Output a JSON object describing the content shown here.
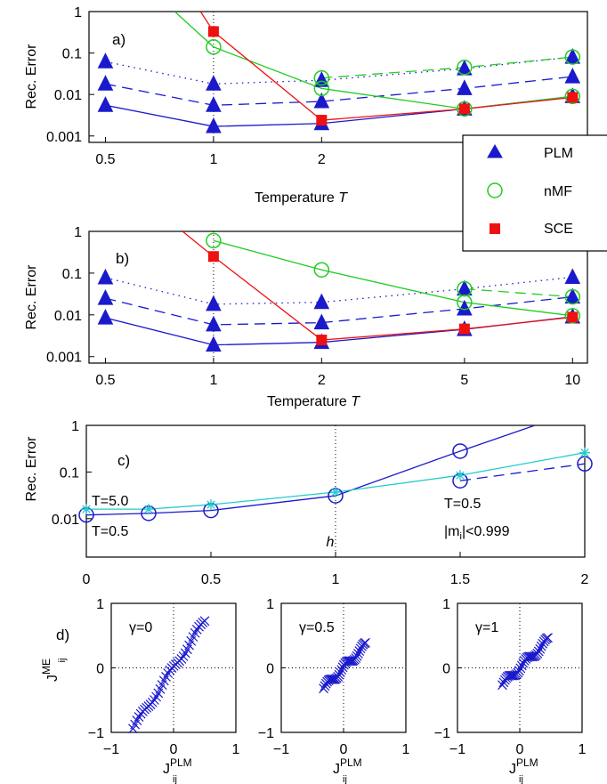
{
  "legend": {
    "entries": [
      {
        "label": "PLM",
        "marker": "triangle",
        "color": "#1a1acc"
      },
      {
        "label": "nMF",
        "marker": "open-circle",
        "color": "#22cc22"
      },
      {
        "label": "SCE",
        "marker": "square",
        "color": "#ee1111"
      }
    ],
    "placement": "right, spanning panels a and b"
  },
  "chart_data": [
    {
      "type": "line",
      "panel_label": "a)",
      "ylabel": "Rec. Error",
      "xlabel_plain": "Temperature ",
      "xlabel_italic": "T",
      "x_scale": "log",
      "y_scale": "log",
      "xlim": [
        0.45,
        11
      ],
      "ylim": [
        0.0007,
        1
      ],
      "x_ticks": [
        0.5,
        1,
        2
      ],
      "x_tick_labels": [
        "0.5",
        "1",
        "2"
      ],
      "y_ticks": [
        0.001,
        0.01,
        0.1,
        1
      ],
      "y_tick_labels": [
        "0.001",
        "0.01",
        "0.1",
        "1"
      ],
      "x": [
        0.5,
        1,
        2,
        5,
        10
      ],
      "series": [
        {
          "method": "PLM",
          "style": "solid",
          "values": [
            0.0055,
            0.0017,
            0.002,
            0.0045,
            0.009
          ]
        },
        {
          "method": "PLM",
          "style": "dashed",
          "values": [
            0.018,
            0.0055,
            0.0068,
            0.014,
            0.027
          ]
        },
        {
          "method": "PLM",
          "style": "dotted",
          "values": [
            0.062,
            0.018,
            0.022,
            0.042,
            0.08
          ]
        },
        {
          "method": "nMF",
          "style": "solid",
          "x": [
            0.78,
            1,
            2,
            5,
            10
          ],
          "values": [
            1,
            0.14,
            0.014,
            0.0045,
            0.009
          ],
          "markers": [
            false,
            true,
            true,
            true,
            true
          ]
        },
        {
          "method": "nMF",
          "style": "dashed",
          "x": [
            2,
            5,
            10
          ],
          "values": [
            0.025,
            0.045,
            0.08
          ],
          "markers": [
            true,
            true,
            true
          ]
        },
        {
          "method": "SCE",
          "style": "solid",
          "x": [
            0.92,
            1,
            2,
            5,
            10
          ],
          "values": [
            1,
            0.33,
            0.0024,
            0.0045,
            0.0085
          ],
          "markers": [
            false,
            true,
            true,
            true,
            true
          ]
        }
      ]
    },
    {
      "type": "line",
      "panel_label": "b)",
      "ylabel": "Rec. Error",
      "xlabel_plain": "Temperature ",
      "xlabel_italic": "T",
      "x_scale": "log",
      "y_scale": "log",
      "xlim": [
        0.45,
        11
      ],
      "ylim": [
        0.0007,
        1
      ],
      "x_ticks": [
        0.5,
        1,
        2,
        5,
        10
      ],
      "x_tick_labels": [
        "0.5",
        "1",
        "2",
        "5",
        "10"
      ],
      "y_ticks": [
        0.001,
        0.01,
        0.1,
        1
      ],
      "y_tick_labels": [
        "0.001",
        "0.01",
        "0.1",
        "1"
      ],
      "x": [
        0.5,
        1,
        2,
        5,
        10
      ],
      "series": [
        {
          "method": "PLM",
          "style": "solid",
          "values": [
            0.0085,
            0.0019,
            0.0022,
            0.0045,
            0.009
          ]
        },
        {
          "method": "PLM",
          "style": "dashed",
          "values": [
            0.025,
            0.0058,
            0.0065,
            0.014,
            0.027
          ]
        },
        {
          "method": "PLM",
          "style": "dotted",
          "values": [
            0.078,
            0.018,
            0.02,
            0.042,
            0.08
          ]
        },
        {
          "method": "nMF",
          "style": "solid",
          "x": [
            1,
            2,
            5,
            10
          ],
          "values": [
            0.6,
            0.12,
            0.02,
            0.0095
          ],
          "markers": [
            true,
            true,
            true,
            true
          ]
        },
        {
          "method": "nMF",
          "style": "dashed",
          "x": [
            5,
            10
          ],
          "values": [
            0.042,
            0.027
          ],
          "markers": [
            true,
            true
          ]
        },
        {
          "method": "SCE",
          "style": "solid",
          "x": [
            0.82,
            1,
            2,
            5,
            10
          ],
          "values": [
            1,
            0.25,
            0.0025,
            0.0046,
            0.0088
          ],
          "markers": [
            false,
            true,
            true,
            true,
            true
          ]
        }
      ]
    },
    {
      "type": "line",
      "panel_label": "c)",
      "ylabel": "Rec. Error",
      "xlabel_italic": "h",
      "x_scale": "linear",
      "y_scale": "log",
      "xlim": [
        0,
        2
      ],
      "ylim": [
        0.0015,
        1
      ],
      "x_ticks": [
        0,
        0.5,
        1,
        1.5,
        2
      ],
      "x_tick_labels": [
        "0",
        "0.5",
        "1",
        "1.5",
        "2"
      ],
      "y_ticks": [
        0.01,
        0.1,
        1
      ],
      "y_tick_labels": [
        "0.01",
        "0.1",
        "1"
      ],
      "annotations": [
        "T=5.0",
        "T=0.5",
        "T=0.5",
        "|m",
        "i",
        "|<0.999"
      ],
      "series": [
        {
          "style": "solid",
          "color": "#1a1acc",
          "marker": "open-circle",
          "x": [
            0,
            0.25,
            0.5,
            1,
            1.5,
            1.8
          ],
          "values": [
            0.012,
            0.013,
            0.015,
            0.031,
            0.28,
            1
          ],
          "markers": [
            true,
            true,
            true,
            true,
            true,
            false
          ]
        },
        {
          "style": "dashed",
          "color": "#1a1acc",
          "marker": "open-circle",
          "x": [
            1.5,
            2
          ],
          "values": [
            0.065,
            0.15
          ],
          "markers": [
            true,
            true
          ]
        },
        {
          "style": "solid",
          "color": "#22cccc",
          "marker": "star",
          "x": [
            0,
            0.25,
            0.5,
            1,
            1.5,
            2
          ],
          "values": [
            0.016,
            0.016,
            0.02,
            0.037,
            0.085,
            0.26
          ],
          "markers": [
            true,
            true,
            true,
            true,
            true,
            true
          ]
        }
      ]
    },
    {
      "type": "scatter",
      "panel_label": "d)",
      "ylabel_main": "J",
      "ylabel_sup": "ME",
      "ylabel_sub": "ij",
      "xlabel_main": "J",
      "xlabel_sup": "PLM",
      "xlabel_sub": "ij",
      "xlim": [
        -1,
        1
      ],
      "ylim": [
        -1,
        1
      ],
      "x_ticks": [
        -1,
        0,
        1
      ],
      "y_ticks": [
        -1,
        0,
        1
      ],
      "tick_labels": [
        "−1",
        "0",
        "1"
      ],
      "marker": "cross",
      "color": "#1a1acc",
      "subplots": [
        {
          "label": "γ=0",
          "slope": 1.45,
          "xrange": [
            -0.65,
            0.5
          ],
          "n": 38
        },
        {
          "label": "γ=0.5",
          "slope": 1.0,
          "xrange": [
            -0.32,
            0.35
          ],
          "n": 36
        },
        {
          "label": "γ=1",
          "slope": 0.95,
          "xrange": [
            -0.28,
            0.45
          ],
          "n": 36
        }
      ]
    }
  ]
}
